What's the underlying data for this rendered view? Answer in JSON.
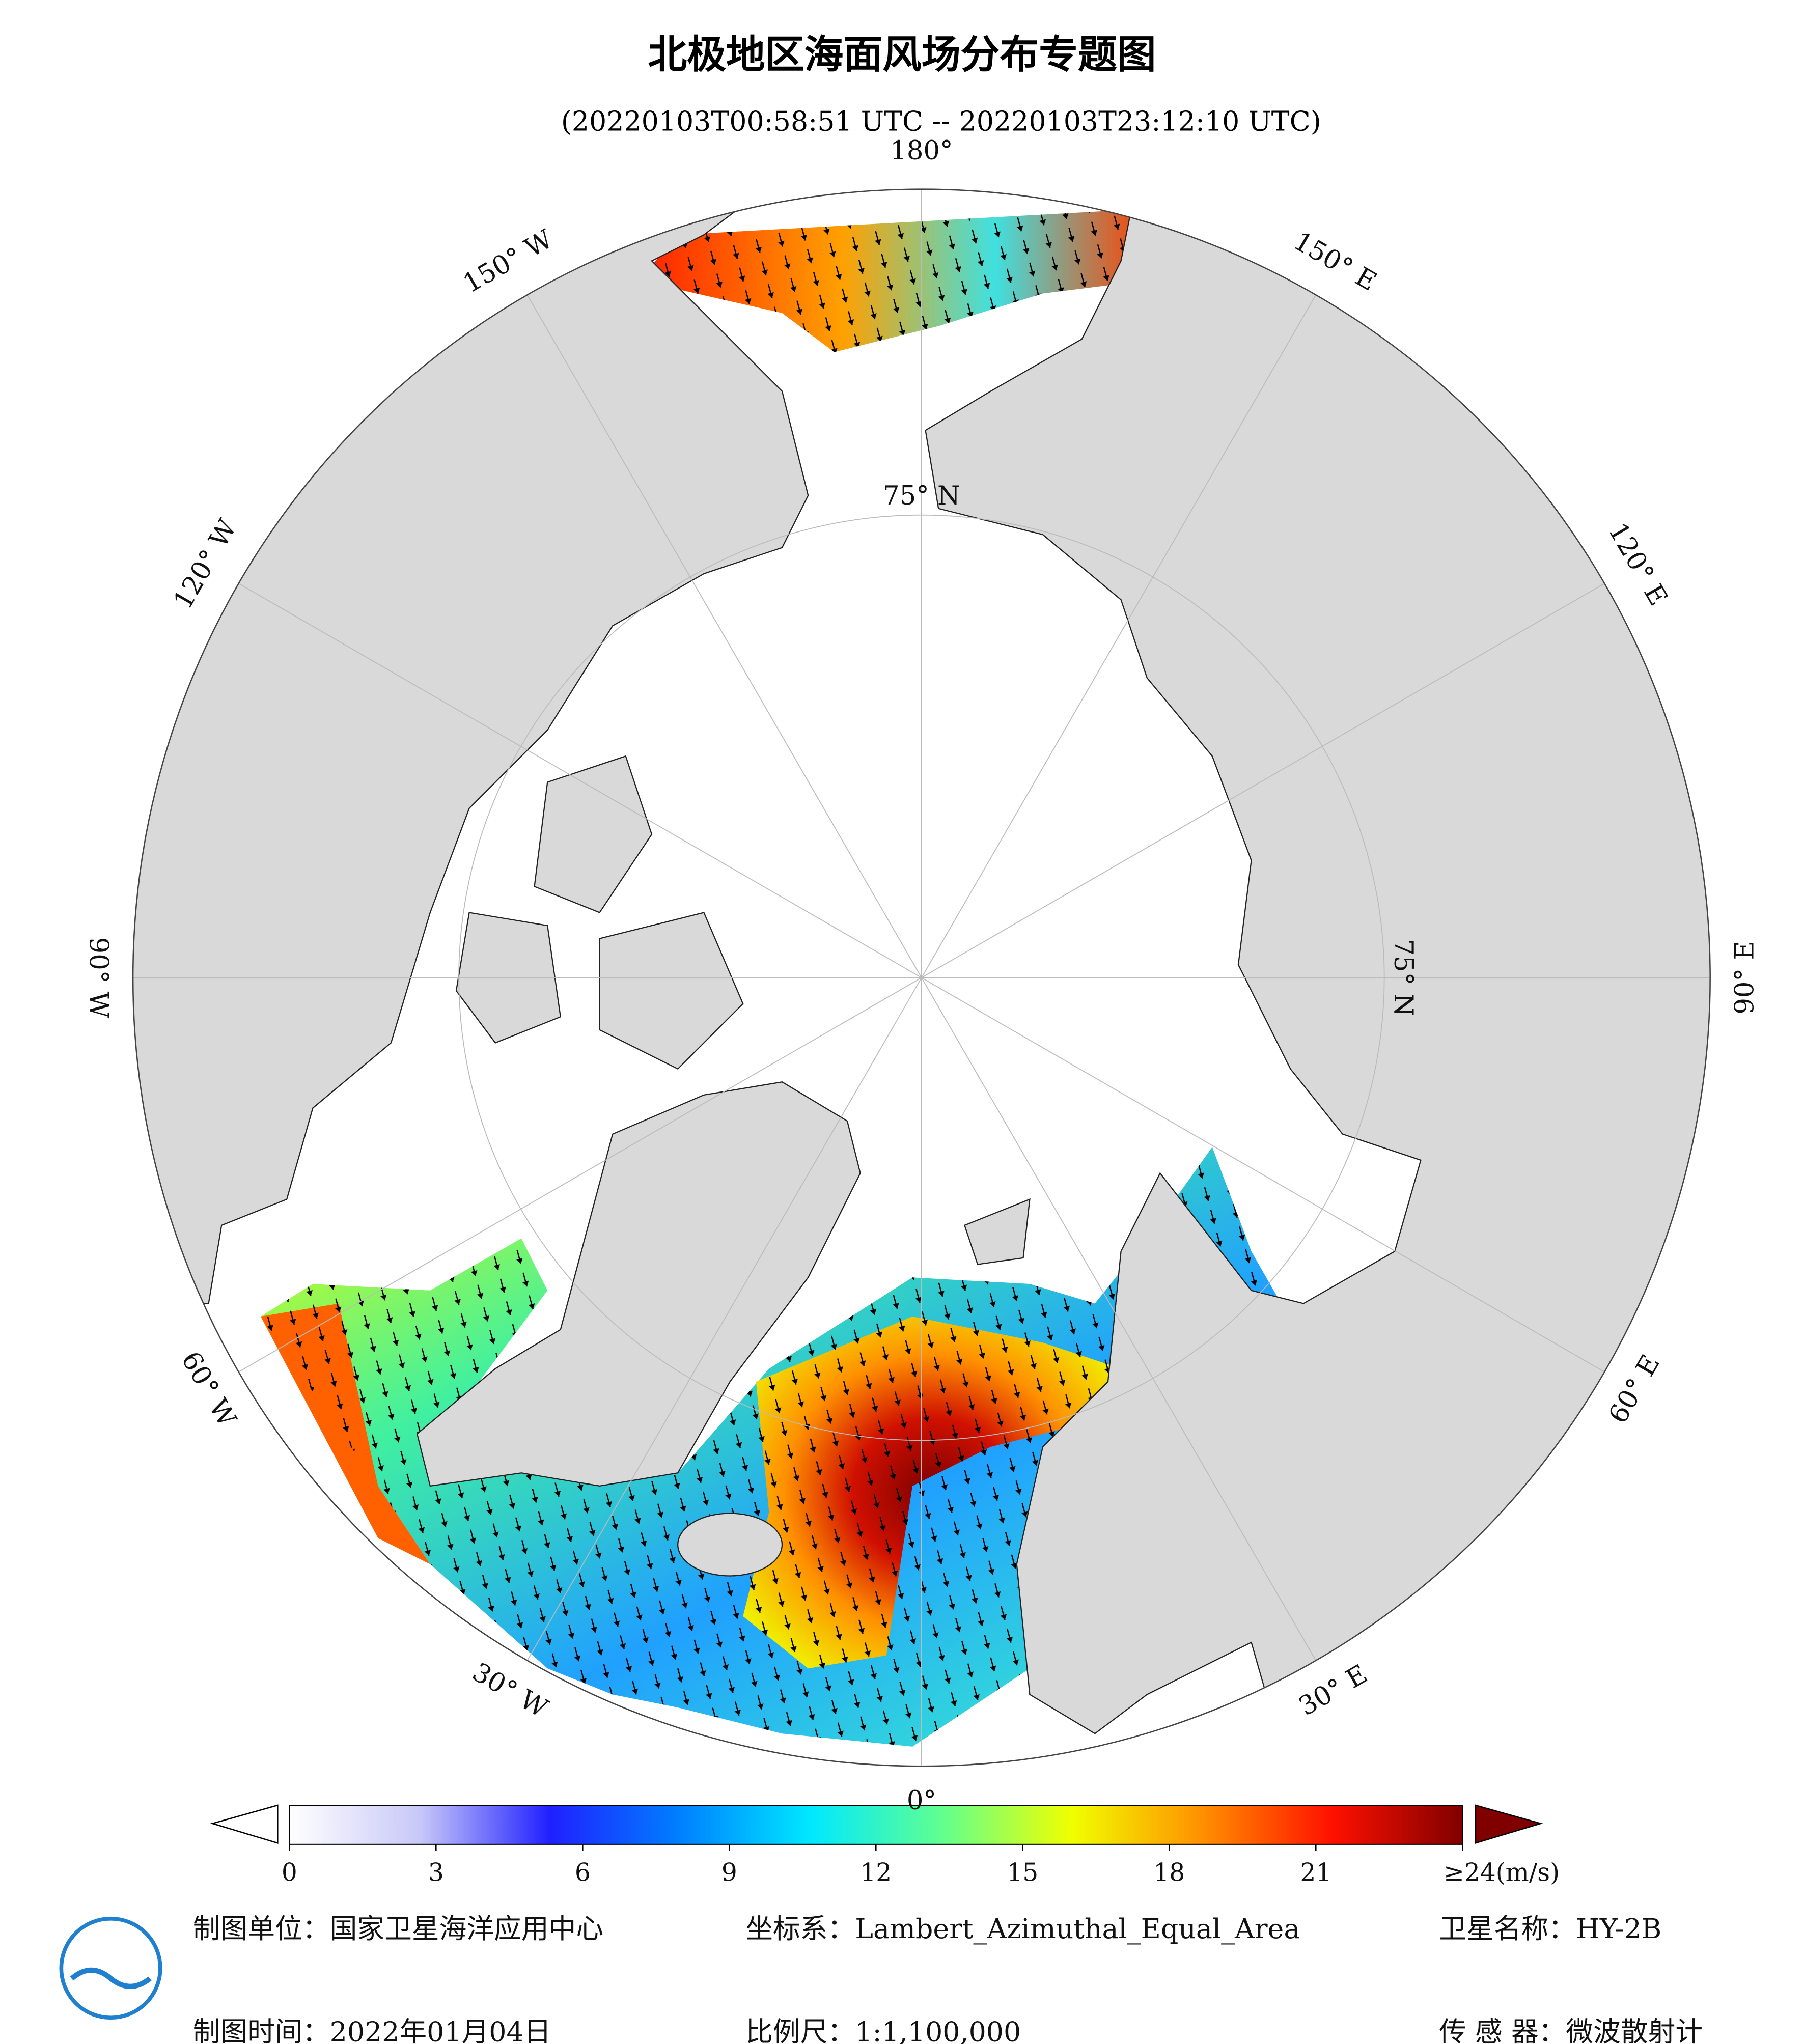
{
  "title": "北极地区海面风场分布专题图",
  "subtitle": "(20220103T00:58:51 UTC -- 20220103T23:12:10 UTC)",
  "meridians": [
    {
      "value": 180,
      "label": "180°"
    },
    {
      "value": 150,
      "label": "150° E"
    },
    {
      "value": 120,
      "label": "120° E"
    },
    {
      "value": 90,
      "label": "90° E"
    },
    {
      "value": 60,
      "label": "60° E"
    },
    {
      "value": 30,
      "label": "30° E"
    },
    {
      "value": 0,
      "label": "0°"
    },
    {
      "value": -30,
      "label": "30° W"
    },
    {
      "value": -60,
      "label": "60° W"
    },
    {
      "value": -90,
      "label": "90° W"
    },
    {
      "value": -120,
      "label": "120° W"
    },
    {
      "value": -150,
      "label": "150° W"
    }
  ],
  "parallels": [
    {
      "value": 75,
      "label": "75° N"
    }
  ],
  "colorbar": {
    "lim": [
      0,
      24
    ],
    "ticks": [
      0,
      3,
      6,
      9,
      12,
      15,
      18,
      21,
      {
        "value": 24,
        "label": "≥24(m/s)"
      }
    ],
    "colors": [
      "#ffffff",
      "#c8c8f8",
      "#2020ff",
      "#0080ff",
      "#00e8ff",
      "#60ff90",
      "#f0ff00",
      "#ff9000",
      "#ff1000",
      "#800000"
    ]
  },
  "footer": {
    "unit": "制图单位：国家卫星海洋应用中心",
    "crs": "坐标系：Lambert_Azimuthal_Equal_Area",
    "satellite": "卫星名称：HY-2B",
    "date": "制图时间：2022年01月04日",
    "scale": "比例尺：1:1,100,000",
    "sensor": "传 感 器：微波散射计"
  }
}
